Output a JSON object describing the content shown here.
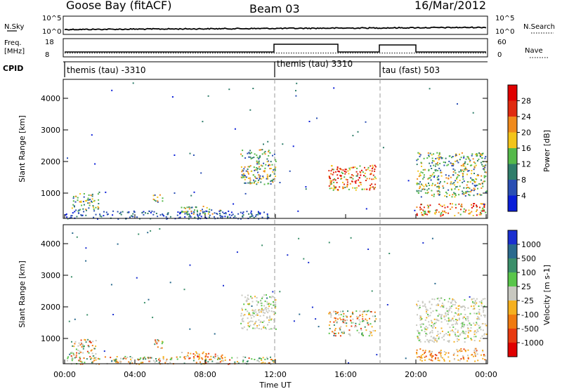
{
  "header": {
    "station": "Goose Bay (fitACF)",
    "beam": "Beam 03",
    "date": "16/Mar/2012"
  },
  "noise_panel": {
    "left_label": "N.Sky",
    "right_label": "N.Search",
    "left_ticks": [
      "10^5",
      "10^0"
    ],
    "right_ticks": [
      "10^5",
      "10^0"
    ]
  },
  "freq_panel": {
    "left_label_line1": "Freq.",
    "left_label_line2": "[MHz]",
    "right_label": "Nave",
    "left_ticks": [
      "18",
      "8"
    ],
    "right_ticks": [
      "60",
      "0"
    ]
  },
  "cpid_panel": {
    "label": "CPID",
    "segments": [
      {
        "label": "themis (tau) -3310",
        "start_hour": 0
      },
      {
        "label": "themis (tau) 3310",
        "start_hour": 12
      },
      {
        "label": "tau (fast) 503",
        "start_hour": 18
      }
    ]
  },
  "chart_data": [
    {
      "type": "heatmap",
      "name": "power-panel",
      "ylabel": "Slant Range [km]",
      "xlabel": "Time UT",
      "x_ticks": [
        "00:00",
        "04:00",
        "08:00",
        "12:00",
        "16:00",
        "20:00",
        "00:00"
      ],
      "x_tick_hours": [
        0,
        4,
        8,
        12,
        16,
        20,
        24
      ],
      "y_ticks": [
        1000,
        2000,
        3000,
        4000
      ],
      "ylim": [
        200,
        4600
      ],
      "colorbar": {
        "label": "Power [dB]",
        "tick_labels": [
          "4",
          "8",
          "12",
          "16",
          "20",
          "24",
          "28"
        ],
        "colors": [
          "#0a1ed8",
          "#2a4fb4",
          "#2f7d6a",
          "#55b94a",
          "#f3c41a",
          "#f08a1c",
          "#e02a10",
          "#e00000"
        ]
      },
      "regions": [
        {
          "hour_start": 0.0,
          "hour_end": 12.0,
          "range_start": 200,
          "range_end": 450,
          "value": "low"
        },
        {
          "hour_start": 0.3,
          "hour_end": 1.9,
          "range_start": 450,
          "range_end": 1000,
          "value": "mid"
        },
        {
          "hour_start": 5.0,
          "hour_end": 5.6,
          "range_start": 700,
          "range_end": 1000,
          "value": "mid"
        },
        {
          "hour_start": 6.6,
          "hour_end": 9.0,
          "range_start": 350,
          "range_end": 600,
          "value": "mid"
        },
        {
          "hour_start": 10.0,
          "hour_end": 12.0,
          "range_start": 1300,
          "range_end": 2400,
          "value": "mid"
        },
        {
          "hour_start": 15.0,
          "hour_end": 17.7,
          "range_start": 1100,
          "range_end": 1900,
          "value": "high"
        },
        {
          "hour_start": 20.0,
          "hour_end": 24.0,
          "range_start": 900,
          "range_end": 2300,
          "value": "mid"
        },
        {
          "hour_start": 20.0,
          "hour_end": 24.0,
          "range_start": 300,
          "range_end": 700,
          "value": "high"
        }
      ]
    },
    {
      "type": "heatmap",
      "name": "velocity-panel",
      "ylabel": "Slant Range [km]",
      "xlabel": "Time UT",
      "x_ticks": [
        "00:00",
        "04:00",
        "08:00",
        "12:00",
        "16:00",
        "20:00",
        "00:00"
      ],
      "x_tick_hours": [
        0,
        4,
        8,
        12,
        16,
        20,
        24
      ],
      "y_ticks": [
        1000,
        2000,
        3000,
        4000
      ],
      "ylim": [
        200,
        4600
      ],
      "colorbar": {
        "label": "Velocity [m s-1]",
        "tick_labels": [
          "1000",
          "500",
          "100",
          "25",
          "-25",
          "-100",
          "-500",
          "-1000"
        ],
        "colors": [
          "#1a2fd0",
          "#2a6a8e",
          "#3b8f6a",
          "#59c54a",
          "#c8c8c0",
          "#f5b020",
          "#f07a10",
          "#e83a10",
          "#e00000"
        ]
      },
      "regions": [
        {
          "hour_start": 0.0,
          "hour_end": 12.0,
          "range_start": 200,
          "range_end": 450,
          "value": "mixed"
        },
        {
          "hour_start": 0.3,
          "hour_end": 1.9,
          "range_start": 450,
          "range_end": 1000,
          "value": "mixed"
        },
        {
          "hour_start": 5.0,
          "hour_end": 5.6,
          "range_start": 700,
          "range_end": 1000,
          "value": "mixed"
        },
        {
          "hour_start": 6.6,
          "hour_end": 9.0,
          "range_start": 350,
          "range_end": 600,
          "value": "negative"
        },
        {
          "hour_start": 10.0,
          "hour_end": 12.0,
          "range_start": 1300,
          "range_end": 2400,
          "value": "ground"
        },
        {
          "hour_start": 15.0,
          "hour_end": 17.7,
          "range_start": 1100,
          "range_end": 1900,
          "value": "mixed"
        },
        {
          "hour_start": 20.0,
          "hour_end": 24.0,
          "range_start": 900,
          "range_end": 2300,
          "value": "ground"
        },
        {
          "hour_start": 20.0,
          "hour_end": 24.0,
          "range_start": 300,
          "range_end": 700,
          "value": "negative"
        }
      ]
    }
  ]
}
